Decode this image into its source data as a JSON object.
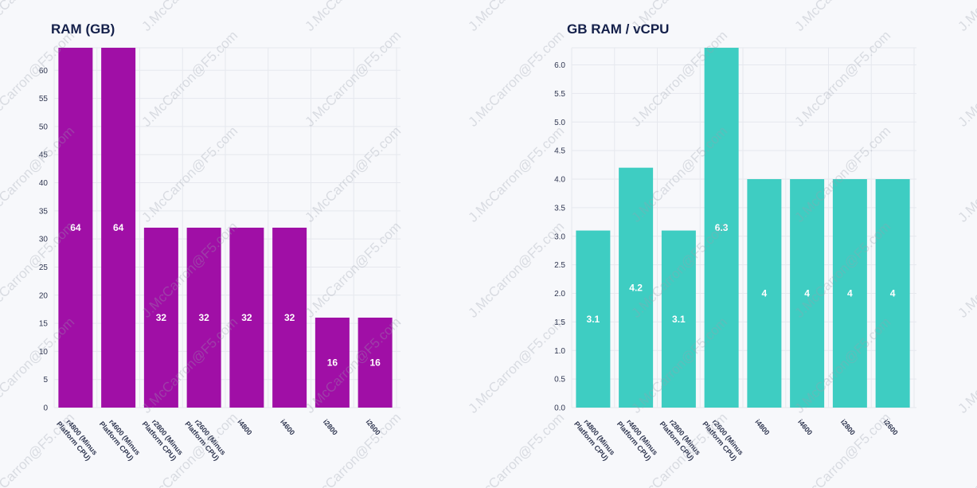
{
  "charts": [
    {
      "type": "bar",
      "title": "RAM (GB)",
      "color": "#a00fa6",
      "categories": [
        "r4800 (Minus Platform CPU)",
        "r4600 (Minus Platform CPU)",
        "r2800 (Minus Platform CPU)",
        "r2600 (Minus Platform CPU)",
        "i4800",
        "i4600",
        "i2800",
        "i2600"
      ],
      "values": [
        64,
        64,
        32,
        32,
        32,
        32,
        16,
        16
      ],
      "value_labels": [
        "64",
        "64",
        "32",
        "32",
        "32",
        "32",
        "16",
        "16"
      ],
      "ylim": [
        0,
        64
      ],
      "yticks": [
        0,
        5,
        10,
        15,
        20,
        25,
        30,
        35,
        40,
        45,
        50,
        55,
        60
      ],
      "ytick_labels": [
        "0",
        "5",
        "10",
        "15",
        "20",
        "25",
        "30",
        "35",
        "40",
        "45",
        "50",
        "55",
        "60"
      ],
      "xlabel": "",
      "ylabel": "",
      "grid": true
    },
    {
      "type": "bar",
      "title": "GB RAM / vCPU",
      "color": "#3ecdc2",
      "categories": [
        "r4800 (Minus Platform CPU)",
        "r4600 (Minus Platform CPU)",
        "r2800 (Minus Platform CPU)",
        "r2600 (Minus Platform CPU)",
        "i4800",
        "i4600",
        "i2800",
        "i2600"
      ],
      "values": [
        3.1,
        4.2,
        3.1,
        6.3,
        4,
        4,
        4,
        4
      ],
      "value_labels": [
        "3.1",
        "4.2",
        "3.1",
        "6.3",
        "4",
        "4",
        "4",
        "4"
      ],
      "ylim": [
        0,
        6.3
      ],
      "yticks": [
        0,
        0.5,
        1.0,
        1.5,
        2.0,
        2.5,
        3.0,
        3.5,
        4.0,
        4.5,
        5.0,
        5.5,
        6.0
      ],
      "ytick_labels": [
        "0.0",
        "0.5",
        "1.0",
        "1.5",
        "2.0",
        "2.5",
        "3.0",
        "3.5",
        "4.0",
        "4.5",
        "5.0",
        "5.5",
        "6.0"
      ],
      "xlabel": "",
      "ylabel": "",
      "grid": true
    }
  ],
  "watermark": "J.McCarron@F5.com"
}
